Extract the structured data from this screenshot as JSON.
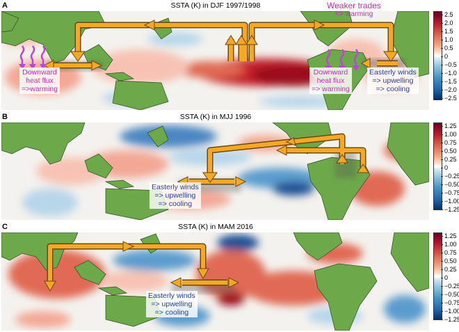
{
  "colors": {
    "ocean_neutral": "#f4f2ee",
    "land": "#6da84a",
    "land_dark": "#3f7d2d",
    "arrow": "#f5a823",
    "arrow_outline": "#6b4a10",
    "squiggle": "#b64bd0",
    "text_magenta": "#c62fb4",
    "text_blue": "#2a3f98",
    "warm_strong": "#9b0d1a",
    "warm": "#e06a55",
    "warm_light": "#f7c2b3",
    "cool_light": "#b7d6ea",
    "cool": "#5c9ccd",
    "cool_strong": "#1f4f93"
  },
  "panels": [
    {
      "letter": "A",
      "title": "SSTA (K) in DJF 1997/1998",
      "colorbar": {
        "icon": "colorbar-a",
        "ticks": [
          "2.5",
          "2.0",
          "1.5",
          "1.0",
          "0.5",
          "0",
          "−0.5",
          "−1.0",
          "−1.5",
          "−2.0",
          "−2.5"
        ]
      },
      "annotations": {
        "weaker_trades": [
          "Weaker trades",
          "=> warming"
        ],
        "heat_flux_west": [
          "Downward",
          "heat flux",
          "=>warming"
        ],
        "heat_flux_east": [
          "Downward",
          "heat flux",
          "=> warming"
        ],
        "easterly": [
          "Easterly winds",
          "=> upwelling",
          "=> cooling"
        ]
      },
      "icons": [
        "walker-circulation-arrows",
        "heat-flux-squiggle-icon"
      ]
    },
    {
      "letter": "B",
      "title": "SSTA (K) in MJJ 1996",
      "colorbar": {
        "icon": "colorbar-b",
        "ticks": [
          "1.25",
          "1.00",
          "0.75",
          "0.50",
          "0.25",
          "0",
          "−0.25",
          "−0.50",
          "−0.75",
          "−1.00",
          "−1.25"
        ]
      },
      "annotations": {
        "easterly": [
          "Easterly winds",
          "=> upwelling",
          "=> cooling"
        ]
      },
      "icons": [
        "walker-circulation-arrows"
      ]
    },
    {
      "letter": "C",
      "title": "SSTA (K) in MAM 2016",
      "colorbar": {
        "icon": "colorbar-c",
        "ticks": [
          "1.25",
          "1.00",
          "0.75",
          "0.50",
          "0.25",
          "0",
          "−0.25",
          "−0.50",
          "−0.75",
          "−1.00",
          "−1.25"
        ]
      },
      "annotations": {
        "easterly": [
          "Easterly winds",
          "=> upwelling",
          "=> cooling"
        ]
      },
      "icons": [
        "walker-circulation-arrows"
      ]
    }
  ]
}
